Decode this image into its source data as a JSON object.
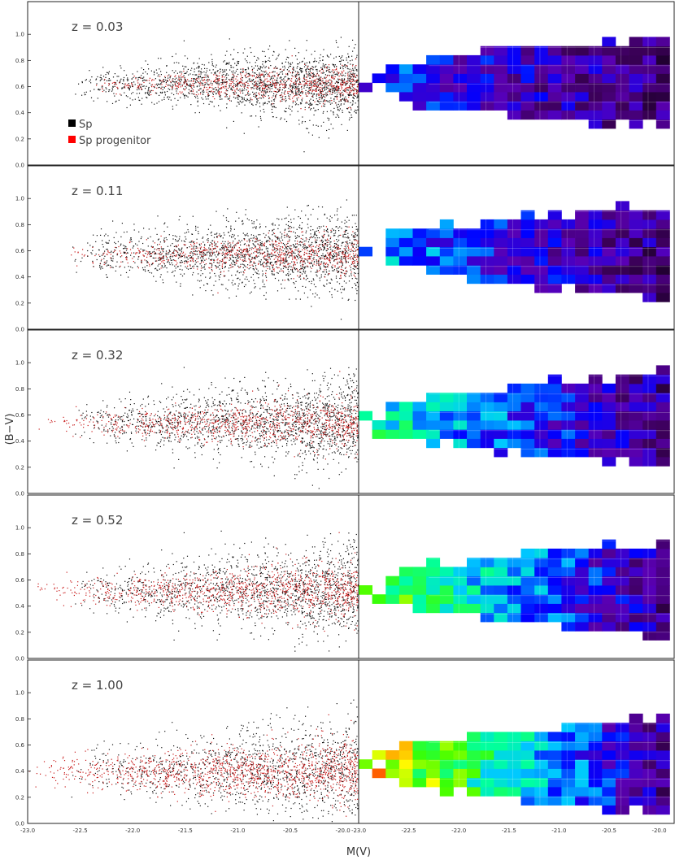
{
  "chart_data": {
    "type": "scatter",
    "xlabel": "M(V)",
    "ylabel": "(B−V)",
    "y_ticks": [
      "0.0",
      "0.2",
      "0.4",
      "0.6",
      "0.8",
      "1.0"
    ],
    "left_x_ticks": [
      "-23.0",
      "-22.5",
      "-22.0",
      "-21.5",
      "-21.0",
      "-20.5",
      "-20.0"
    ],
    "right_x_ticks": [
      "-23.0",
      "-22.5",
      "-22.0",
      "-21.5",
      "-21.0",
      "-20.5",
      "-20.0"
    ],
    "left_xlim": [
      -23.0,
      -19.85
    ],
    "right_xlim": [
      -23.0,
      -19.85
    ],
    "ylim": [
      0.0,
      1.25
    ],
    "legend": {
      "placement": "left, lower part of top panel",
      "entries": [
        {
          "label": "Sp",
          "color": "#000000"
        },
        {
          "label": "Sp progenitor",
          "color": "#ff0000"
        }
      ]
    },
    "panels": [
      {
        "z_label": "z = 0.03",
        "z": 0.03,
        "black_center": 0.62,
        "black_spread": 0.12,
        "red_center": 0.62,
        "red_spread": 0.06,
        "red_fraction": 0.3,
        "red_bright_edge": -22.4,
        "colormap_mean": 0.18
      },
      {
        "z_label": "z = 0.11",
        "z": 0.11,
        "black_center": 0.58,
        "black_spread": 0.14,
        "red_center": 0.57,
        "red_spread": 0.07,
        "red_fraction": 0.32,
        "red_bright_edge": -22.6,
        "colormap_mean": 0.25
      },
      {
        "z_label": "z = 0.32",
        "z": 0.32,
        "black_center": 0.55,
        "black_spread": 0.15,
        "red_center": 0.54,
        "red_spread": 0.08,
        "red_fraction": 0.36,
        "red_bright_edge": -22.9,
        "colormap_mean": 0.35
      },
      {
        "z_label": "z = 0.52",
        "z": 0.52,
        "black_center": 0.52,
        "black_spread": 0.16,
        "red_center": 0.52,
        "red_spread": 0.09,
        "red_fraction": 0.42,
        "red_bright_edge": -23.0,
        "colormap_mean": 0.45
      },
      {
        "z_label": "z = 1.00",
        "z": 1.0,
        "black_center": 0.42,
        "black_spread": 0.17,
        "red_center": 0.4,
        "red_spread": 0.1,
        "red_fraction": 0.55,
        "red_bright_edge": -23.0,
        "colormap_mean": 0.55
      }
    ],
    "grid": true,
    "right_panel_type": "heatmap"
  }
}
